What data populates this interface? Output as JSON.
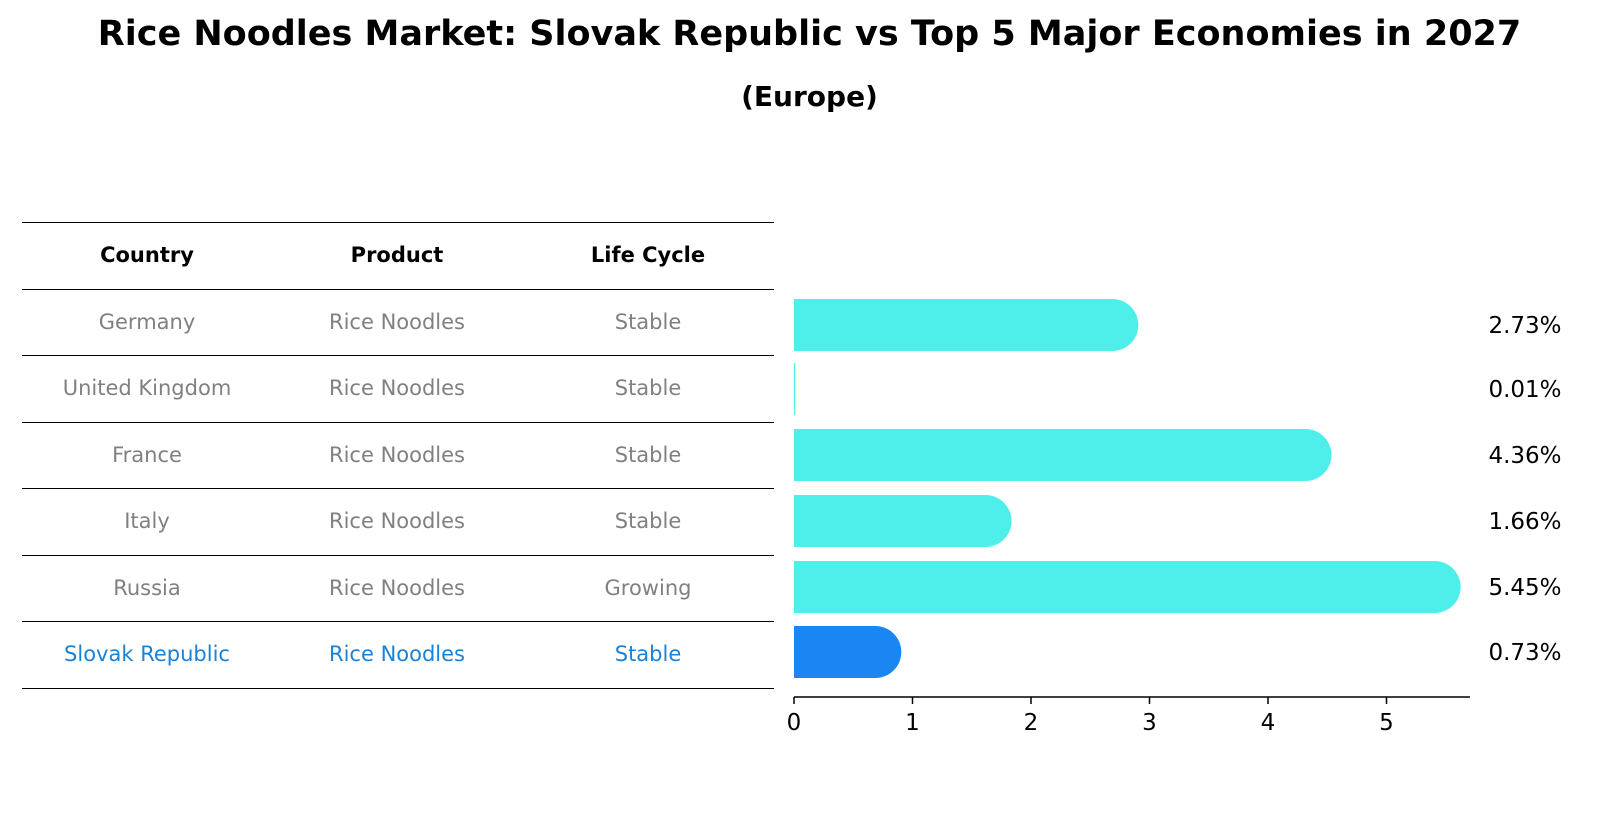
{
  "title": "Rice Noodles Market: Slovak Republic vs Top 5 Major Economies in 2027",
  "subtitle": "(Europe)",
  "table": {
    "headers": [
      "Country",
      "Product",
      "Life Cycle"
    ],
    "rows": [
      {
        "country": "Germany",
        "product": "Rice Noodles",
        "life_cycle": "Stable",
        "highlight": false
      },
      {
        "country": "United Kingdom",
        "product": "Rice Noodles",
        "life_cycle": "Stable",
        "highlight": false
      },
      {
        "country": "France",
        "product": "Rice Noodles",
        "life_cycle": "Stable",
        "highlight": false
      },
      {
        "country": "Italy",
        "product": "Rice Noodles",
        "life_cycle": "Stable",
        "highlight": false
      },
      {
        "country": "Russia",
        "product": "Rice Noodles",
        "life_cycle": "Growing",
        "highlight": false
      },
      {
        "country": "Slovak Republic",
        "product": "Rice Noodles",
        "life_cycle": "Stable",
        "highlight": true
      }
    ]
  },
  "chart_data": {
    "type": "bar",
    "orientation": "horizontal",
    "categories": [
      "Germany",
      "United Kingdom",
      "France",
      "Italy",
      "Russia",
      "Slovak Republic"
    ],
    "values": [
      2.73,
      0.01,
      4.36,
      1.66,
      5.45,
      0.73
    ],
    "value_labels": [
      "2.73%",
      "0.01%",
      "4.36%",
      "1.66%",
      "5.45%",
      "0.73%"
    ],
    "xlim": [
      0,
      5.7
    ],
    "xticks": [
      0,
      1,
      2,
      3,
      4,
      5
    ],
    "colors": {
      "default": "#4eeeea",
      "highlight": "#1a86f2"
    },
    "highlight_index": 5,
    "grid": false
  }
}
